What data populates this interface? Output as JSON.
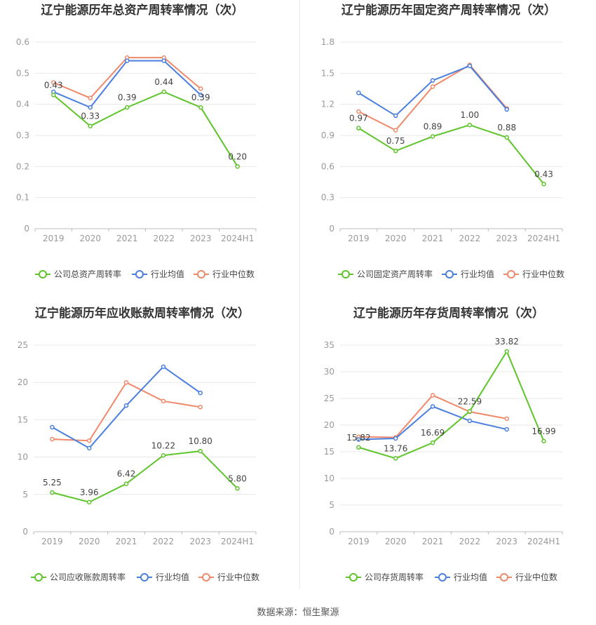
{
  "colors": {
    "company": "#5ec42b",
    "industry_avg": "#4a7fe0",
    "industry_median": "#f0896a",
    "grid": "#e8e8e8",
    "axis": "#999999"
  },
  "source_text": "数据来源：恒生聚源",
  "chart_data": [
    {
      "type": "line",
      "title": "辽宁能源历年总资产周转率情况（次）",
      "categories": [
        "2019",
        "2020",
        "2021",
        "2022",
        "2023",
        "2024H1"
      ],
      "yticks": [
        "0",
        "0.1",
        "0.2",
        "0.3",
        "0.4",
        "0.5",
        "0.6"
      ],
      "ylim": [
        0,
        0.6
      ],
      "grid": true,
      "legend_position": "bottom",
      "series": [
        {
          "name": "公司总资产周转率",
          "values": [
            0.43,
            0.33,
            0.39,
            0.44,
            0.39,
            0.2
          ],
          "labels": [
            "0.43",
            "0.33",
            "0.39",
            "0.44",
            "0.39",
            "0.20"
          ]
        },
        {
          "name": "行业均值",
          "values": [
            0.44,
            0.39,
            0.54,
            0.54,
            0.43,
            null
          ]
        },
        {
          "name": "行业中位数",
          "values": [
            0.47,
            0.42,
            0.55,
            0.55,
            0.45,
            null
          ]
        }
      ]
    },
    {
      "type": "line",
      "title": "辽宁能源历年固定资产周转率情况（次）",
      "categories": [
        "2019",
        "2020",
        "2021",
        "2022",
        "2023",
        "2024H1"
      ],
      "yticks": [
        "0",
        "0.3",
        "0.6",
        "0.9",
        "1.2",
        "1.5",
        "1.8"
      ],
      "ylim": [
        0,
        1.8
      ],
      "grid": true,
      "legend_position": "bottom",
      "series": [
        {
          "name": "公司固定资产周转率",
          "values": [
            0.97,
            0.75,
            0.89,
            1.0,
            0.88,
            0.43
          ],
          "labels": [
            "0.97",
            "0.75",
            "0.89",
            "1.00",
            "0.88",
            "0.43"
          ]
        },
        {
          "name": "行业均值",
          "values": [
            1.31,
            1.09,
            1.43,
            1.57,
            1.15,
            null
          ]
        },
        {
          "name": "行业中位数",
          "values": [
            1.13,
            0.95,
            1.37,
            1.58,
            1.16,
            null
          ]
        }
      ]
    },
    {
      "type": "line",
      "title": "辽宁能源历年应收账款周转率情况（次）",
      "categories": [
        "2019",
        "2020",
        "2021",
        "2022",
        "2023",
        "2024H1"
      ],
      "yticks": [
        "0",
        "5",
        "10",
        "15",
        "20",
        "25"
      ],
      "ylim": [
        0,
        25
      ],
      "grid": true,
      "legend_position": "bottom",
      "series": [
        {
          "name": "公司应收账款周转率",
          "values": [
            5.25,
            3.96,
            6.42,
            10.22,
            10.8,
            5.8
          ],
          "labels": [
            "5.25",
            "3.96",
            "6.42",
            "10.22",
            "10.80",
            "5.80"
          ]
        },
        {
          "name": "行业均值",
          "values": [
            14.0,
            11.2,
            16.9,
            22.1,
            18.6,
            null
          ]
        },
        {
          "name": "行业中位数",
          "values": [
            12.4,
            12.2,
            20.0,
            17.5,
            16.7,
            null
          ]
        }
      ]
    },
    {
      "type": "line",
      "title": "辽宁能源历年存货周转率情况（次）",
      "categories": [
        "2019",
        "2020",
        "2021",
        "2022",
        "2023",
        "2024H1"
      ],
      "yticks": [
        "0",
        "5",
        "10",
        "15",
        "20",
        "25",
        "30",
        "35"
      ],
      "ylim": [
        0,
        35
      ],
      "grid": true,
      "legend_position": "bottom",
      "series": [
        {
          "name": "公司存货周转率",
          "values": [
            15.82,
            13.76,
            16.69,
            22.59,
            33.82,
            16.99
          ],
          "labels": [
            "15.82",
            "13.76",
            "16.69",
            "22.59",
            "33.82",
            "16.99"
          ]
        },
        {
          "name": "行业均值",
          "values": [
            17.3,
            17.5,
            23.5,
            20.8,
            19.2,
            null
          ]
        },
        {
          "name": "行业中位数",
          "values": [
            17.8,
            17.7,
            25.6,
            22.5,
            21.2,
            null
          ]
        }
      ]
    }
  ]
}
